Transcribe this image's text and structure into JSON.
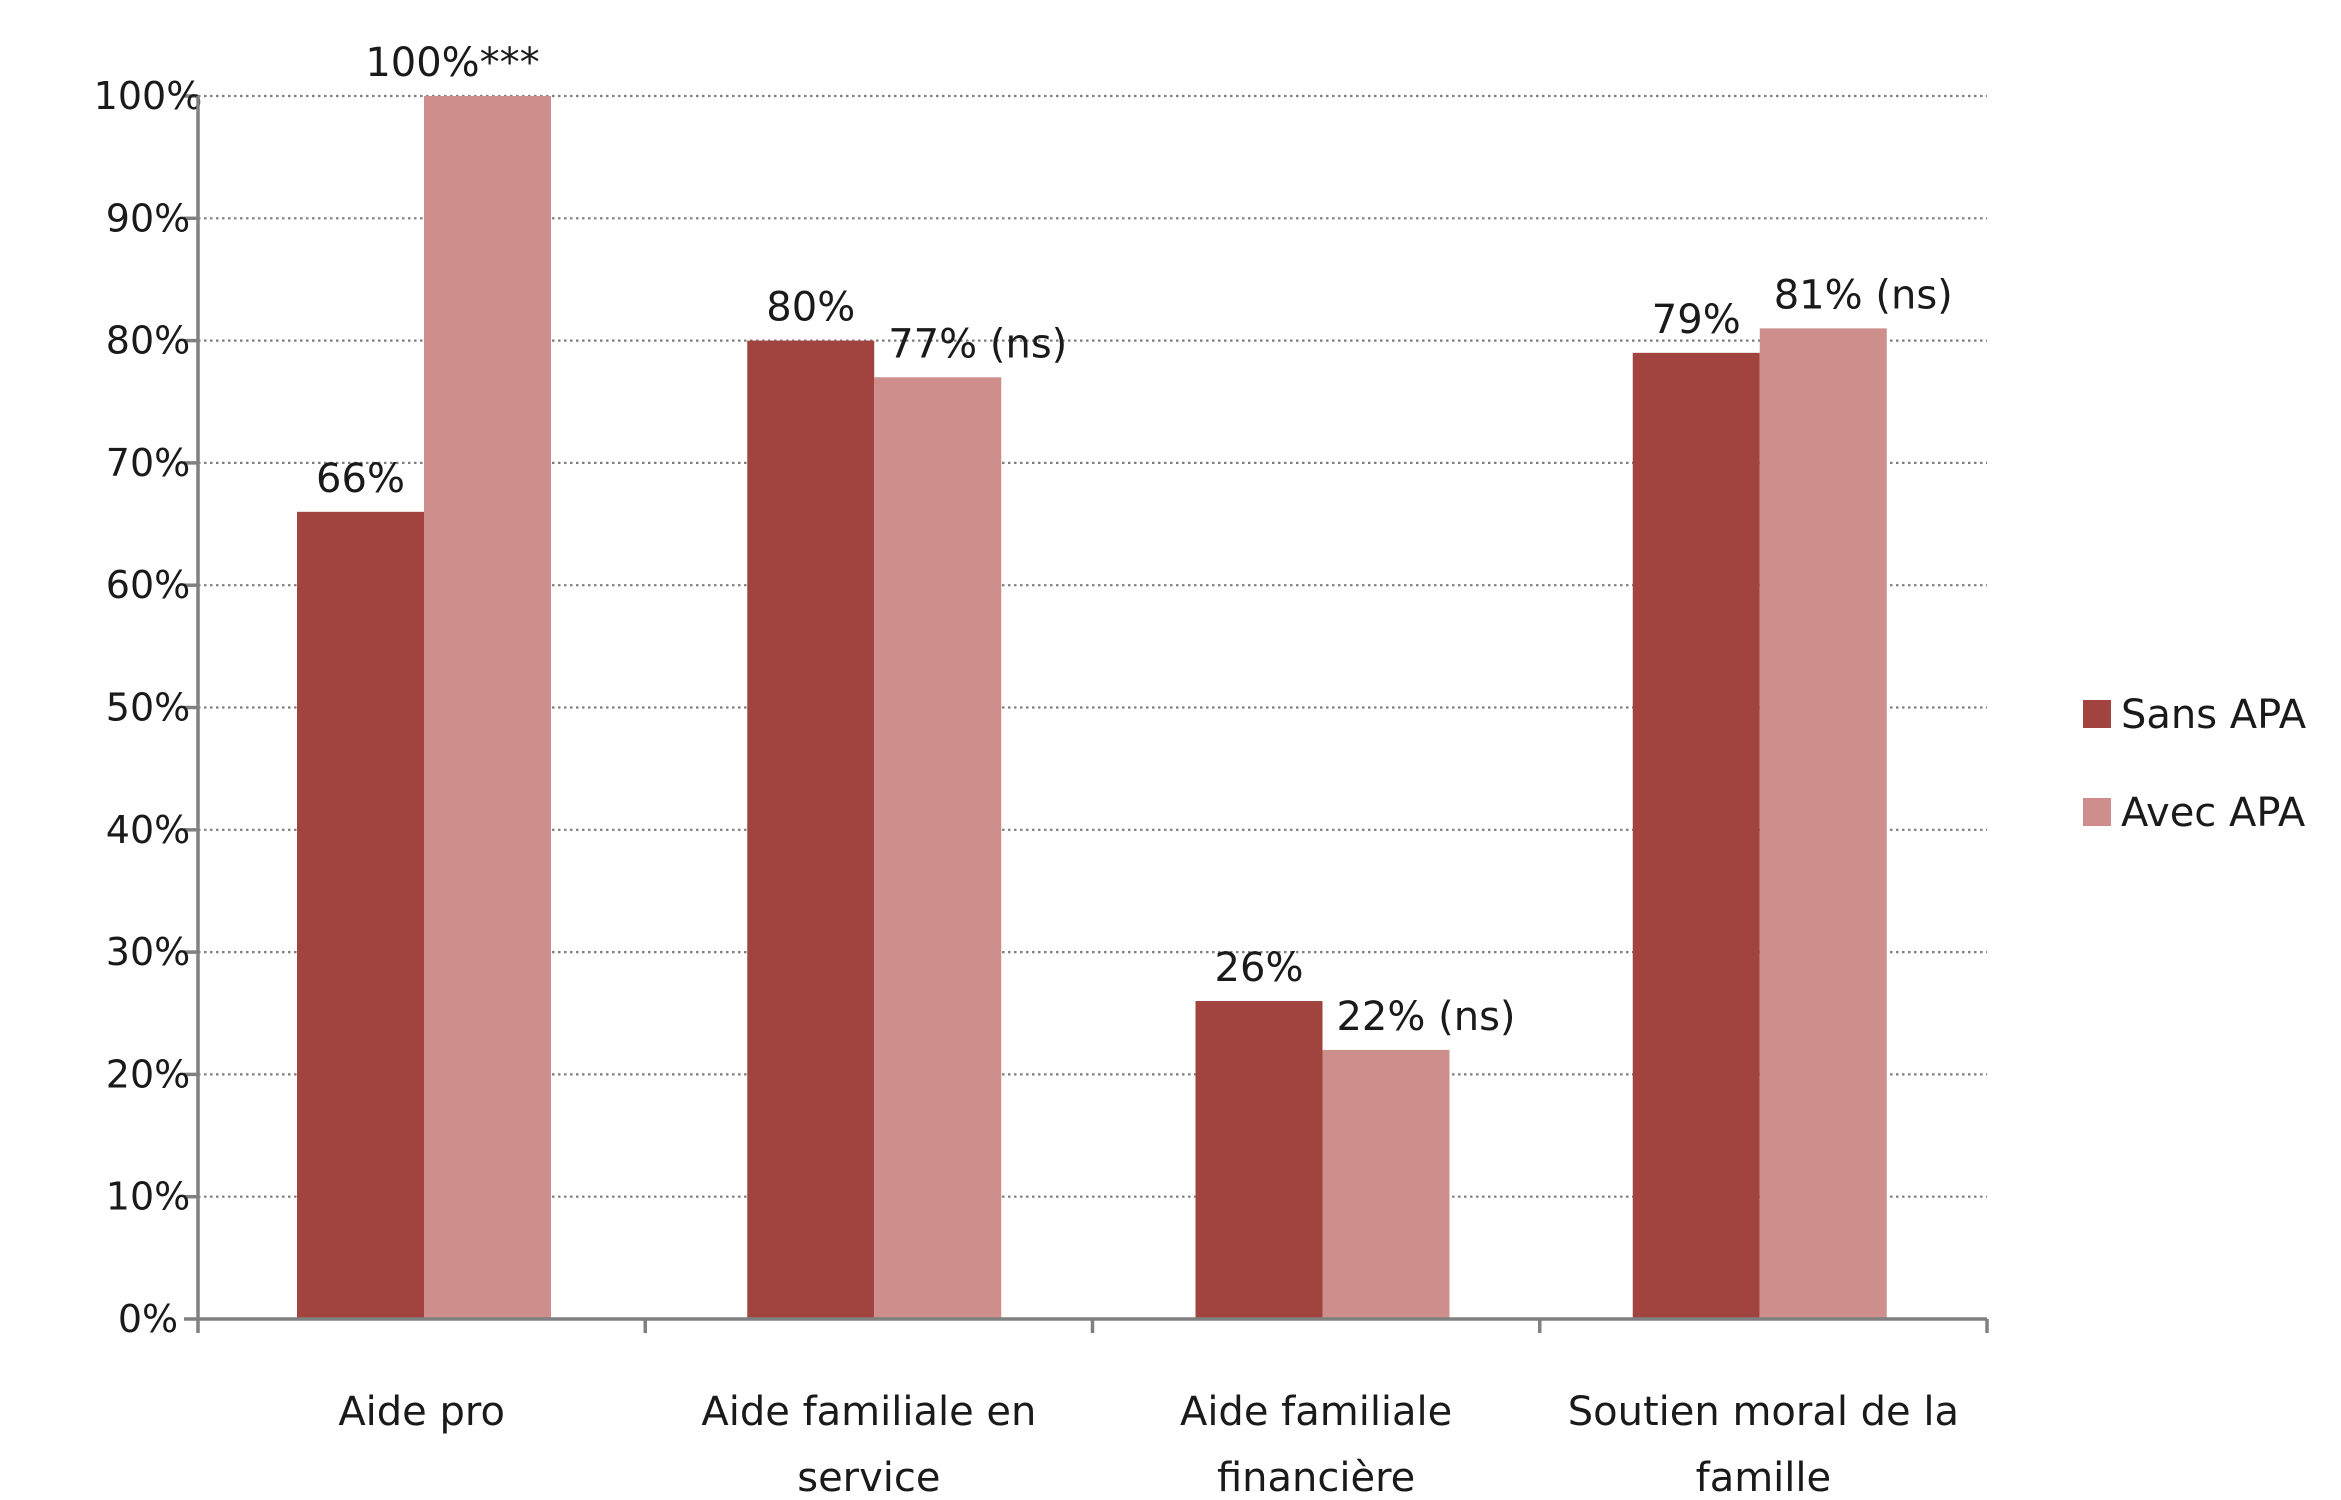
{
  "chart_data": {
    "type": "bar",
    "title": "",
    "xlabel": "",
    "ylabel": "",
    "ylim": [
      0,
      100
    ],
    "yticks": [
      "0%",
      "10%",
      "20%",
      "30%",
      "40%",
      "50%",
      "60%",
      "70%",
      "80%",
      "90%",
      "100%"
    ],
    "grid": true,
    "legend_position": "right",
    "categories": [
      [
        "Aide pro"
      ],
      [
        "Aide familiale  en",
        "service"
      ],
      [
        "Aide familiale",
        "financière"
      ],
      [
        "Soutien moral de la",
        "famille"
      ]
    ],
    "series": [
      {
        "name": "Sans APA",
        "color": "#a14440",
        "values": [
          66,
          80,
          26,
          79
        ],
        "labels": [
          "66%",
          "80%",
          "26%",
          "79%"
        ]
      },
      {
        "name": "Avec APA",
        "color": "#cd8e8c",
        "values": [
          100,
          77,
          22,
          81
        ],
        "labels": [
          "100%***",
          "77% (ns)",
          "22% (ns)",
          "81% (ns)"
        ]
      }
    ]
  }
}
